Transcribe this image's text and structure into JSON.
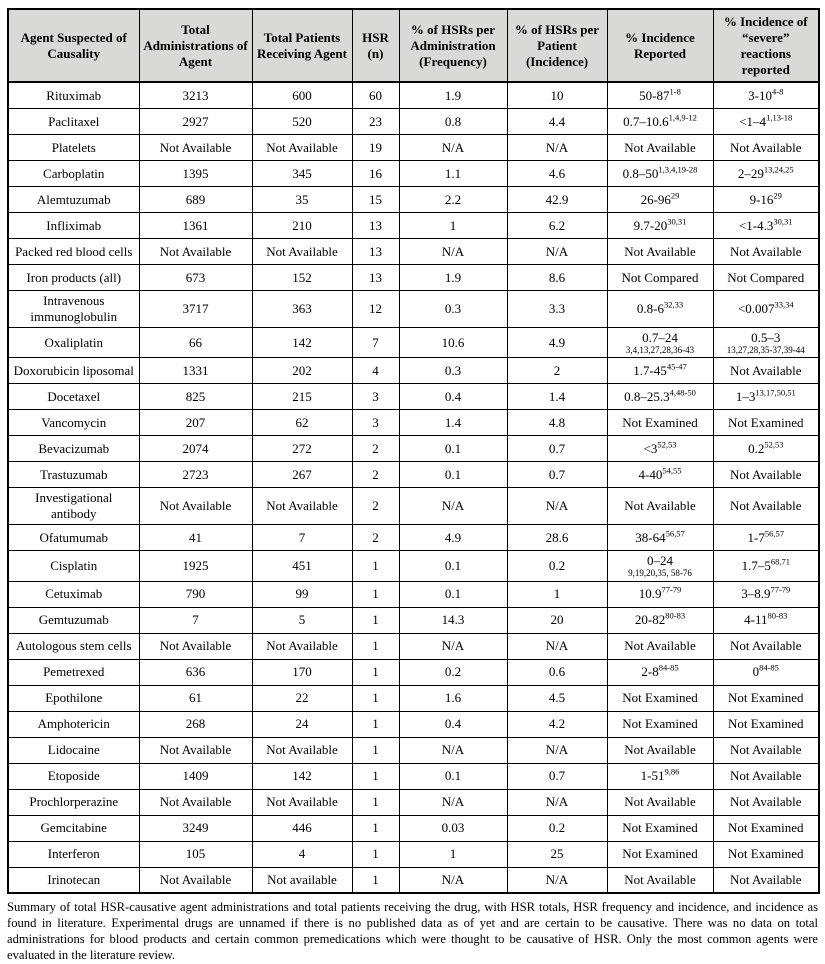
{
  "table": {
    "headers": [
      "Agent Suspected of Causality",
      "Total Administrations of Agent",
      "Total Patients Receiving Agent",
      "HSR (n)",
      "% of HSRs per Administration (Frequency)",
      "% of HSRs per Patient (Incidence)",
      "% Incidence Reported",
      "% Incidence of “severe” reactions reported"
    ],
    "column_names": [
      "agent-cell",
      "administrations-cell",
      "patients-cell",
      "hsr-count-cell",
      "frequency-cell",
      "incidence-cell",
      "reported-incidence-cell",
      "severe-incidence-cell"
    ],
    "rows": [
      {
        "agent": "Rituximab",
        "administrations": "3213",
        "patients": "600",
        "hsr": "60",
        "freq": "1.9",
        "incidence": "10",
        "reported": {
          "text": "50-87",
          "sup": "1-8"
        },
        "severe": {
          "text": "3-10",
          "sup": "4-8"
        }
      },
      {
        "agent": "Paclitaxel",
        "administrations": "2927",
        "patients": "520",
        "hsr": "23",
        "freq": "0.8",
        "incidence": "4.4",
        "reported": {
          "text": "0.7–10.6",
          "sup": "1,4,9-12"
        },
        "severe": {
          "text": "<1–4",
          "sup": "1,13-18"
        }
      },
      {
        "agent": "Platelets",
        "administrations": "Not Available",
        "patients": "Not Available",
        "hsr": "19",
        "freq": "N/A",
        "incidence": "N/A",
        "reported": {
          "text": "Not Available"
        },
        "severe": {
          "text": "Not Available"
        }
      },
      {
        "agent": "Carboplatin",
        "administrations": "1395",
        "patients": "345",
        "hsr": "16",
        "freq": "1.1",
        "incidence": "4.6",
        "reported": {
          "text": "0.8–50",
          "sup": "1,3,4,19-28"
        },
        "severe": {
          "text": "2–29",
          "sup": "13,24,25"
        }
      },
      {
        "agent": "Alemtuzumab",
        "administrations": "689",
        "patients": "35",
        "hsr": "15",
        "freq": "2.2",
        "incidence": "42.9",
        "reported": {
          "text": "26-96",
          "sup": "29"
        },
        "severe": {
          "text": "9-16",
          "sup": "29"
        }
      },
      {
        "agent": "Infliximab",
        "administrations": "1361",
        "patients": "210",
        "hsr": "13",
        "freq": "1",
        "incidence": "6.2",
        "reported": {
          "text": "9.7-20",
          "sup": "30,31"
        },
        "severe": {
          "text": "<1-4.3",
          "sup": "30,31"
        }
      },
      {
        "agent": "Packed red blood cells",
        "administrations": "Not Available",
        "patients": "Not Available",
        "hsr": "13",
        "freq": "N/A",
        "incidence": "N/A",
        "reported": {
          "text": "Not Available"
        },
        "severe": {
          "text": "Not Available"
        }
      },
      {
        "agent": "Iron products (all)",
        "administrations": "673",
        "patients": "152",
        "hsr": "13",
        "freq": "1.9",
        "incidence": "8.6",
        "reported": {
          "text": "Not Compared"
        },
        "severe": {
          "text": "Not Compared"
        }
      },
      {
        "agent": "Intravenous immunoglobulin",
        "administrations": "3717",
        "patients": "363",
        "hsr": "12",
        "freq": "0.3",
        "incidence": "3.3",
        "reported": {
          "text": "0.8-6",
          "sup": "32,33"
        },
        "severe": {
          "text": "<0.007",
          "sup": "33,34"
        }
      },
      {
        "agent": "Oxaliplatin",
        "administrations": "66",
        "patients": "142",
        "hsr": "7",
        "freq": "10.6",
        "incidence": "4.9",
        "reported": {
          "text": "0.7–24",
          "below": "3,4,13,27,28,36-43"
        },
        "severe": {
          "text": "0.5–3",
          "below": "13,27,28,35-37,39-44"
        }
      },
      {
        "agent": "Doxorubicin liposomal",
        "administrations": "1331",
        "patients": "202",
        "hsr": "4",
        "freq": "0.3",
        "incidence": "2",
        "reported": {
          "text": "1.7-45",
          "sup": "45-47"
        },
        "severe": {
          "text": "Not Available"
        }
      },
      {
        "agent": "Docetaxel",
        "administrations": "825",
        "patients": "215",
        "hsr": "3",
        "freq": "0.4",
        "incidence": "1.4",
        "reported": {
          "text": "0.8–25.3",
          "sup": "4,48-50"
        },
        "severe": {
          "text": "1–3",
          "sup": "13,17,50,51"
        }
      },
      {
        "agent": "Vancomycin",
        "administrations": "207",
        "patients": "62",
        "hsr": "3",
        "freq": "1.4",
        "incidence": "4.8",
        "reported": {
          "text": "Not Examined"
        },
        "severe": {
          "text": "Not Examined"
        }
      },
      {
        "agent": "Bevacizumab",
        "administrations": "2074",
        "patients": "272",
        "hsr": "2",
        "freq": "0.1",
        "incidence": "0.7",
        "reported": {
          "text": "<3",
          "sup": "52,53"
        },
        "severe": {
          "text": "0.2",
          "sup": "52,53"
        }
      },
      {
        "agent": "Trastuzumab",
        "administrations": "2723",
        "patients": "267",
        "hsr": "2",
        "freq": "0.1",
        "incidence": "0.7",
        "reported": {
          "text": "4-40",
          "sup": "54,55"
        },
        "severe": {
          "text": "Not Available"
        }
      },
      {
        "agent": "Investigational antibody",
        "administrations": "Not Available",
        "patients": "Not Available",
        "hsr": "2",
        "freq": "N/A",
        "incidence": "N/A",
        "reported": {
          "text": "Not Available"
        },
        "severe": {
          "text": "Not Available"
        }
      },
      {
        "agent": "Ofatumumab",
        "administrations": "41",
        "patients": "7",
        "hsr": "2",
        "freq": "4.9",
        "incidence": "28.6",
        "reported": {
          "text": "38-64",
          "sup": "56,57"
        },
        "severe": {
          "text": "1-7",
          "sup": "56,57"
        }
      },
      {
        "agent": "Cisplatin",
        "administrations": "1925",
        "patients": "451",
        "hsr": "1",
        "freq": "0.1",
        "incidence": "0.2",
        "reported": {
          "text": "0–24",
          "below": "9,19,20,35, 58-76"
        },
        "severe": {
          "text": "1.7–5",
          "sup": "68,71"
        }
      },
      {
        "agent": "Cetuximab",
        "administrations": "790",
        "patients": "99",
        "hsr": "1",
        "freq": "0.1",
        "incidence": "1",
        "reported": {
          "text": "10.9",
          "sup": "77-79"
        },
        "severe": {
          "text": "3–8.9",
          "sup": "77-79"
        }
      },
      {
        "agent": "Gemtuzumab",
        "administrations": "7",
        "patients": "5",
        "hsr": "1",
        "freq": "14.3",
        "incidence": "20",
        "reported": {
          "text": "20-82",
          "sup": "80-83"
        },
        "severe": {
          "text": "4-11",
          "sup": "80-83"
        }
      },
      {
        "agent": "Autologous stem cells",
        "administrations": "Not Available",
        "patients": "Not Available",
        "hsr": "1",
        "freq": "N/A",
        "incidence": "N/A",
        "reported": {
          "text": "Not Available"
        },
        "severe": {
          "text": "Not Available"
        }
      },
      {
        "agent": "Pemetrexed",
        "administrations": "636",
        "patients": "170",
        "hsr": "1",
        "freq": "0.2",
        "incidence": "0.6",
        "reported": {
          "text": "2-8",
          "sup": "84-85"
        },
        "severe": {
          "text": "0",
          "sup": "84-85"
        }
      },
      {
        "agent": "Epothilone",
        "administrations": "61",
        "patients": "22",
        "hsr": "1",
        "freq": "1.6",
        "incidence": "4.5",
        "reported": {
          "text": "Not Examined"
        },
        "severe": {
          "text": "Not Examined"
        }
      },
      {
        "agent": "Amphotericin",
        "administrations": "268",
        "patients": "24",
        "hsr": "1",
        "freq": "0.4",
        "incidence": "4.2",
        "reported": {
          "text": "Not Examined"
        },
        "severe": {
          "text": "Not Examined"
        }
      },
      {
        "agent": "Lidocaine",
        "administrations": "Not Available",
        "patients": "Not Available",
        "hsr": "1",
        "freq": "N/A",
        "incidence": "N/A",
        "reported": {
          "text": "Not Available"
        },
        "severe": {
          "text": "Not Available"
        }
      },
      {
        "agent": "Etoposide",
        "administrations": "1409",
        "patients": "142",
        "hsr": "1",
        "freq": "0.1",
        "incidence": "0.7",
        "reported": {
          "text": "1-51",
          "sup": "9,86"
        },
        "severe": {
          "text": "Not Available"
        }
      },
      {
        "agent": "Prochlorperazine",
        "administrations": "Not Available",
        "patients": "Not Available",
        "hsr": "1",
        "freq": "N/A",
        "incidence": "N/A",
        "reported": {
          "text": "Not Available"
        },
        "severe": {
          "text": "Not Available"
        }
      },
      {
        "agent": "Gemcitabine",
        "administrations": "3249",
        "patients": "446",
        "hsr": "1",
        "freq": "0.03",
        "incidence": "0.2",
        "reported": {
          "text": "Not Examined"
        },
        "severe": {
          "text": "Not Examined"
        }
      },
      {
        "agent": "Interferon",
        "administrations": "105",
        "patients": "4",
        "hsr": "1",
        "freq": "1",
        "incidence": "25",
        "reported": {
          "text": "Not Examined"
        },
        "severe": {
          "text": "Not Examined"
        }
      },
      {
        "agent": "Irinotecan",
        "administrations": "Not Available",
        "patients": "Not available",
        "hsr": "1",
        "freq": "N/A",
        "incidence": "N/A",
        "reported": {
          "text": "Not Available"
        },
        "severe": {
          "text": "Not Available"
        }
      }
    ]
  },
  "footer": "Summary of total HSR-causative agent administrations and total patients receiving the drug, with HSR totals, HSR frequency and incidence, and incidence as found in literature. Experimental drugs are unnamed if there is no published data as of yet and are certain to be causative. There was no data on total administrations for blood products and certain common premedications which were thought to be causative of HSR. Only the most common agents were evaluated in the literature review."
}
